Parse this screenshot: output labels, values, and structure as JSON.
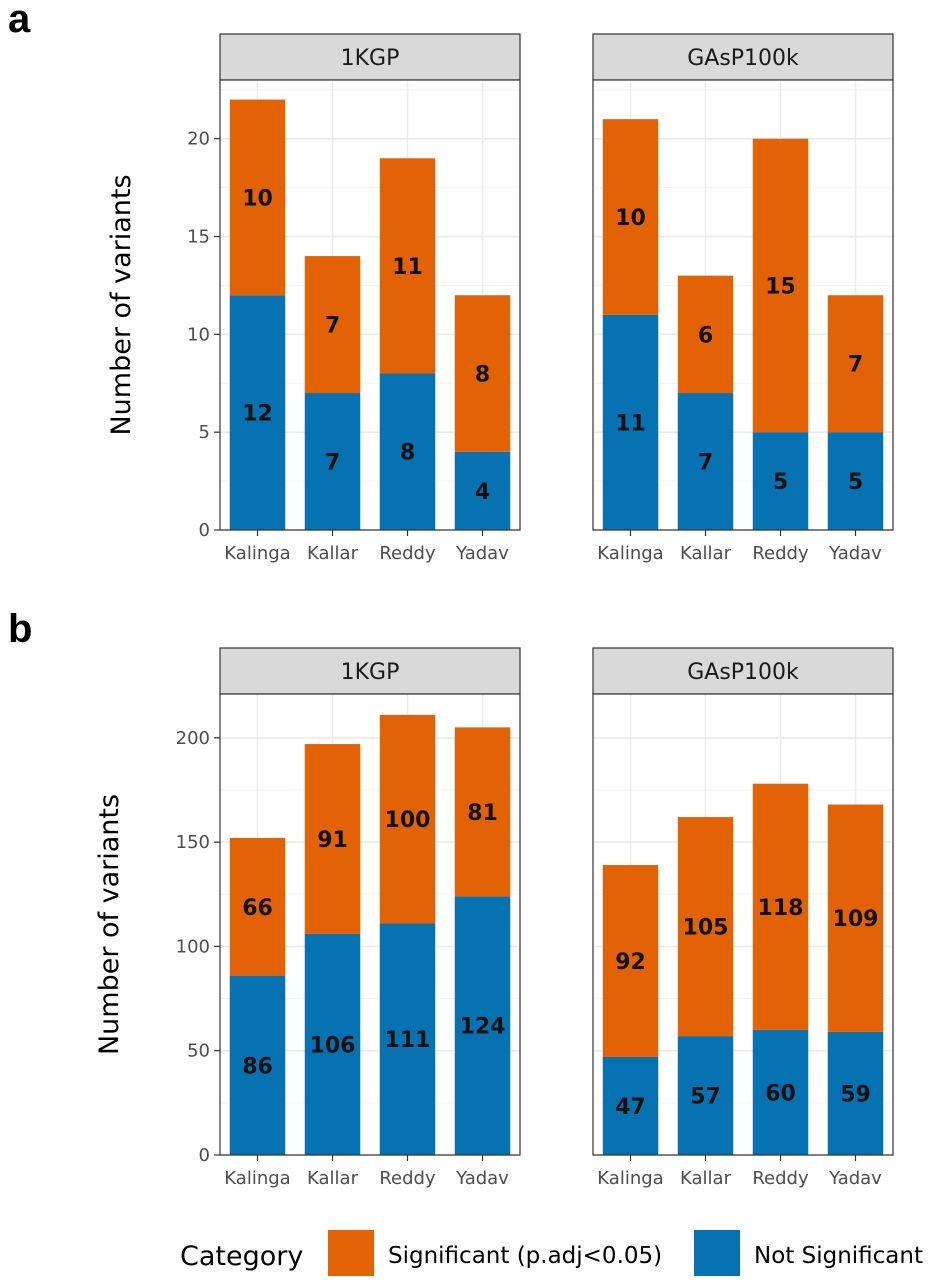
{
  "colors": {
    "significant": "#E36206",
    "not_significant": "#0672B2",
    "strip_bg": "#D9D9D9",
    "grid": "#EBEBEB"
  },
  "chart_data": [
    {
      "type": "bar",
      "stacked": true,
      "panel_label": "a",
      "ylabel": "Number of variants",
      "ylim": [
        0,
        23
      ],
      "yticks": [
        0,
        5,
        10,
        15,
        20
      ],
      "categories": [
        "Kalinga",
        "Kallar",
        "Reddy",
        "Yadav"
      ],
      "facets": [
        {
          "title": "1KGP",
          "series": [
            {
              "name": "Not Significant",
              "values": [
                12,
                7,
                8,
                4
              ]
            },
            {
              "name": "Significant (p.adj<0.05)",
              "values": [
                10,
                7,
                11,
                8
              ]
            }
          ]
        },
        {
          "title": "GAsP100k",
          "series": [
            {
              "name": "Not Significant",
              "values": [
                11,
                7,
                5,
                5
              ]
            },
            {
              "name": "Significant (p.adj<0.05)",
              "values": [
                10,
                6,
                15,
                7
              ]
            }
          ]
        }
      ]
    },
    {
      "type": "bar",
      "stacked": true,
      "panel_label": "b",
      "ylabel": "Number of variants",
      "ylim": [
        0,
        221
      ],
      "yticks": [
        0,
        50,
        100,
        150,
        200
      ],
      "categories": [
        "Kalinga",
        "Kallar",
        "Reddy",
        "Yadav"
      ],
      "facets": [
        {
          "title": "1KGP",
          "series": [
            {
              "name": "Not Significant",
              "values": [
                86,
                106,
                111,
                124
              ]
            },
            {
              "name": "Significant (p.adj<0.05)",
              "values": [
                66,
                91,
                100,
                81
              ]
            }
          ]
        },
        {
          "title": "GAsP100k",
          "series": [
            {
              "name": "Not Significant",
              "values": [
                47,
                57,
                60,
                59
              ]
            },
            {
              "name": "Significant (p.adj<0.05)",
              "values": [
                92,
                105,
                118,
                109
              ]
            }
          ]
        }
      ]
    }
  ],
  "legend": {
    "title": "Category",
    "position": "bottom",
    "items": [
      {
        "label": "Significant (p.adj<0.05)",
        "color_key": "significant"
      },
      {
        "label": "Not Significant",
        "color_key": "not_significant"
      }
    ]
  }
}
